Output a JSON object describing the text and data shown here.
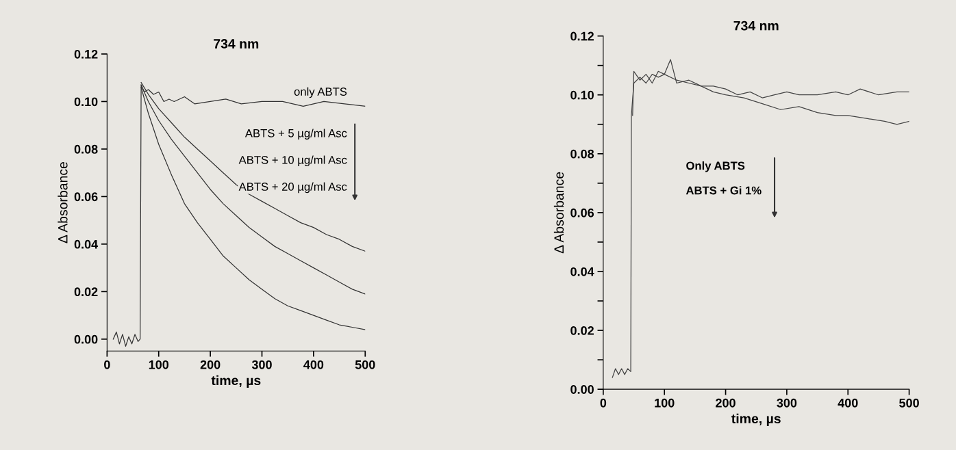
{
  "chart_data": [
    {
      "type": "line",
      "title": "734 nm",
      "xlabel": "time, µs",
      "ylabel": "Δ Absorbance",
      "xlim": [
        0,
        500
      ],
      "ylim": [
        -0.005,
        0.12
      ],
      "xticks": [
        0,
        100,
        200,
        300,
        400,
        500
      ],
      "yticks": [
        {
          "value": 0,
          "label": "0.00"
        },
        {
          "value": 0.02,
          "label": "0.02"
        },
        {
          "value": 0.04,
          "label": "0.04"
        },
        {
          "value": 0.06,
          "label": "0.06"
        },
        {
          "value": 0.08,
          "label": "0.08"
        },
        {
          "value": 0.1,
          "label": "0.10"
        },
        {
          "value": 0.12,
          "label": "0.12"
        }
      ],
      "grid": false,
      "marker": "none",
      "line_style": "solid",
      "series": [
        {
          "color": "#333333",
          "x": [
            12,
            18,
            24,
            30,
            36,
            42,
            48,
            54,
            60,
            64,
            66,
            72,
            80,
            90,
            100,
            110,
            120,
            130,
            150,
            170,
            200,
            230,
            260,
            300,
            340,
            380,
            420,
            460,
            500
          ],
          "values": [
            0.0,
            0.003,
            -0.002,
            0.002,
            -0.003,
            0.001,
            -0.002,
            0.002,
            -0.001,
            0.0,
            0.107,
            0.104,
            0.105,
            0.103,
            0.104,
            0.1,
            0.101,
            0.1,
            0.102,
            0.099,
            0.1,
            0.101,
            0.099,
            0.1,
            0.1,
            0.098,
            0.1,
            0.099,
            0.098
          ]
        },
        {
          "color": "#333333",
          "x": [
            66,
            80,
            100,
            125,
            150,
            175,
            200,
            225,
            250,
            275,
            300,
            325,
            350,
            375,
            400,
            425,
            450,
            475,
            500
          ],
          "values": [
            0.108,
            0.103,
            0.097,
            0.091,
            0.085,
            0.08,
            0.075,
            0.07,
            0.065,
            0.061,
            0.058,
            0.055,
            0.052,
            0.049,
            0.047,
            0.044,
            0.042,
            0.039,
            0.037
          ]
        },
        {
          "color": "#333333",
          "x": [
            66,
            80,
            100,
            125,
            150,
            175,
            200,
            225,
            250,
            275,
            300,
            325,
            350,
            375,
            400,
            425,
            450,
            475,
            500
          ],
          "values": [
            0.107,
            0.1,
            0.092,
            0.084,
            0.077,
            0.07,
            0.063,
            0.057,
            0.052,
            0.047,
            0.043,
            0.039,
            0.036,
            0.033,
            0.03,
            0.027,
            0.024,
            0.021,
            0.019
          ]
        },
        {
          "color": "#333333",
          "x": [
            66,
            80,
            100,
            125,
            150,
            175,
            200,
            225,
            250,
            275,
            300,
            325,
            350,
            375,
            400,
            425,
            450,
            475,
            500
          ],
          "values": [
            0.106,
            0.095,
            0.082,
            0.069,
            0.057,
            0.049,
            0.042,
            0.035,
            0.03,
            0.025,
            0.021,
            0.017,
            0.014,
            0.012,
            0.01,
            0.008,
            0.006,
            0.005,
            0.004
          ]
        }
      ],
      "annotations": [
        "only ABTS",
        "ABTS + 5 µg/ml Asc",
        "ABTS + 10 µg/ml Asc",
        "ABTS + 20 µg/ml Asc"
      ]
    },
    {
      "type": "line",
      "title": "734 nm",
      "xlabel": "time, µs",
      "ylabel": "Δ Absorbance",
      "xlim": [
        0,
        500
      ],
      "ylim": [
        0,
        0.12
      ],
      "xticks": [
        0,
        100,
        200,
        300,
        400,
        500
      ],
      "yticks": [
        {
          "value": 0,
          "label": "0.00"
        },
        {
          "value": 0.01,
          "label": null
        },
        {
          "value": 0.02,
          "label": "0.02"
        },
        {
          "value": 0.03,
          "label": null
        },
        {
          "value": 0.04,
          "label": "0.04"
        },
        {
          "value": 0.05,
          "label": null
        },
        {
          "value": 0.06,
          "label": "0.06"
        },
        {
          "value": 0.07,
          "label": null
        },
        {
          "value": 0.08,
          "label": "0.08"
        },
        {
          "value": 0.09,
          "label": null
        },
        {
          "value": 0.1,
          "label": "0.10"
        },
        {
          "value": 0.11,
          "label": null
        },
        {
          "value": 0.12,
          "label": "0.12"
        }
      ],
      "grid": false,
      "marker": "none",
      "line_style": "solid",
      "series": [
        {
          "color": "#444444",
          "x": [
            15,
            20,
            25,
            30,
            35,
            40,
            45,
            46,
            50,
            60,
            70,
            80,
            90,
            100,
            120,
            140,
            160,
            180,
            200,
            220,
            240,
            260,
            280,
            300,
            320,
            350,
            380,
            400,
            420,
            450,
            480,
            500
          ],
          "values": [
            0.004,
            0.007,
            0.005,
            0.007,
            0.005,
            0.007,
            0.006,
            0.093,
            0.104,
            0.106,
            0.104,
            0.107,
            0.106,
            0.107,
            0.105,
            0.104,
            0.103,
            0.103,
            0.102,
            0.1,
            0.101,
            0.099,
            0.1,
            0.101,
            0.1,
            0.1,
            0.101,
            0.1,
            0.102,
            0.1,
            0.101,
            0.101
          ]
        },
        {
          "color": "#444444",
          "x": [
            48,
            50,
            60,
            70,
            80,
            90,
            100,
            110,
            120,
            140,
            160,
            180,
            200,
            230,
            260,
            290,
            320,
            350,
            380,
            400,
            430,
            460,
            480,
            500
          ],
          "values": [
            0.093,
            0.108,
            0.105,
            0.107,
            0.104,
            0.108,
            0.107,
            0.112,
            0.104,
            0.105,
            0.103,
            0.101,
            0.1,
            0.099,
            0.097,
            0.095,
            0.096,
            0.094,
            0.093,
            0.093,
            0.092,
            0.091,
            0.09,
            0.091
          ]
        }
      ],
      "annotations": [
        "Only ABTS",
        "ABTS + Gi 1%"
      ]
    }
  ]
}
